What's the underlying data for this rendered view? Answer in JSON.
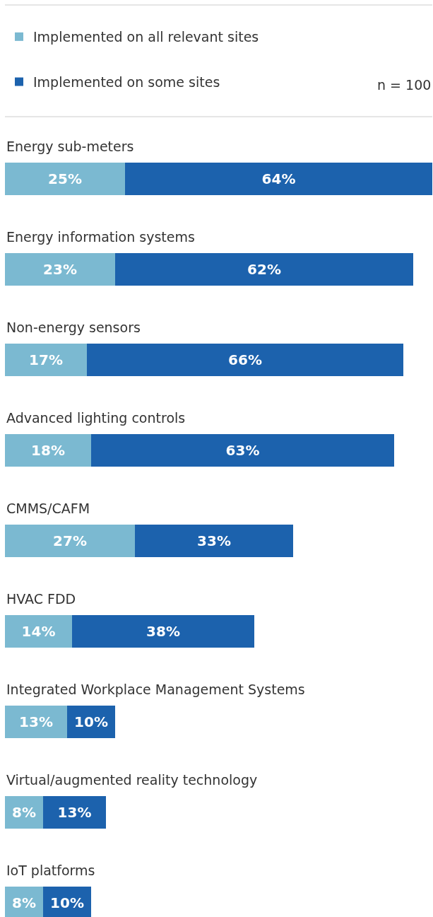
{
  "chart_data": {
    "type": "bar",
    "orientation": "horizontal",
    "stacked": true,
    "categories": [
      "Energy sub-meters",
      "Energy information systems",
      "Non-energy sensors",
      "Advanced lighting controls",
      "CMMS/CAFM",
      "HVAC FDD",
      "Integrated Workplace Management Systems",
      "Virtual/augmented reality technology",
      "IoT platforms"
    ],
    "series": [
      {
        "name": "Implemented on all relevant sites",
        "color": "#7bb9d1",
        "values": [
          25,
          23,
          17,
          18,
          27,
          14,
          13,
          8,
          8
        ],
        "value_labels": [
          "25%",
          "23%",
          "17%",
          "18%",
          "27%",
          "14%",
          "13%",
          "8%",
          "8%"
        ]
      },
      {
        "name": "Implemented on some sites",
        "color": "#1c62ad",
        "values": [
          64,
          62,
          66,
          63,
          33,
          38,
          10,
          13,
          10
        ],
        "value_labels": [
          "64%",
          "62%",
          "66%",
          "63%",
          "33%",
          "38%",
          "10%",
          "13%",
          "10%"
        ]
      }
    ],
    "xlim": [
      0,
      89
    ],
    "tick_labels": false,
    "grid": false,
    "legend": "top",
    "annotations": [
      "n = 100"
    ]
  }
}
